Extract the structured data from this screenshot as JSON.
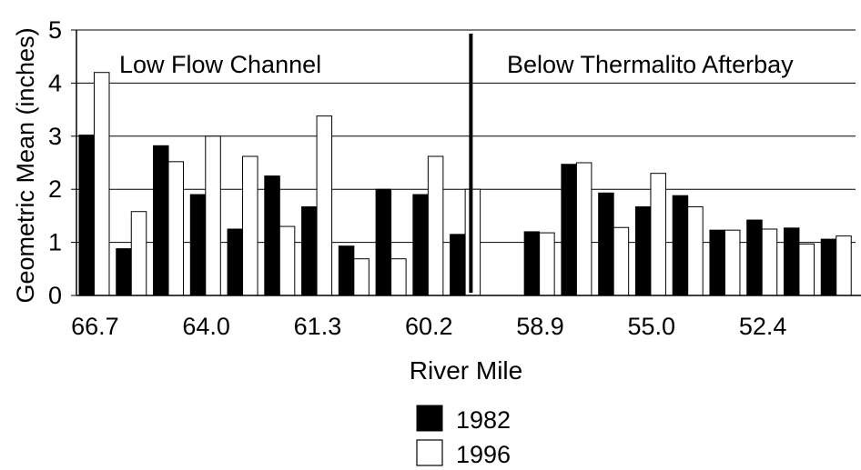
{
  "chart_data": {
    "type": "bar",
    "title": "",
    "xlabel": "River Mile",
    "ylabel": "Geometric Mean (inches)",
    "ylim": [
      0,
      5
    ],
    "yticks": [
      "0",
      "1",
      "2",
      "3",
      "4",
      "5"
    ],
    "x_tick_labels": [
      "66.7",
      "64.0",
      "61.3",
      "60.2",
      "58.9",
      "55.0",
      "52.4"
    ],
    "grid": true,
    "legend_position": "bottom-center",
    "divider_position_group": 11,
    "section_labels": [
      "Low Flow Channel",
      "Below Thermalito Afterbay"
    ],
    "series": [
      {
        "name": "1982",
        "color": "#000000",
        "values": [
          3.02,
          0.88,
          2.82,
          1.9,
          1.25,
          2.25,
          1.67,
          0.93,
          2.0,
          1.9,
          1.15,
          null,
          1.2,
          2.47,
          1.93,
          1.67,
          1.88,
          1.23,
          1.42,
          1.27,
          1.06
        ]
      },
      {
        "name": "1996",
        "color": "#ffffff",
        "values": [
          4.2,
          1.58,
          2.52,
          3.0,
          2.62,
          1.3,
          3.38,
          0.69,
          0.69,
          2.62,
          2.0,
          null,
          1.18,
          2.5,
          1.28,
          2.3,
          1.67,
          1.23,
          1.25,
          0.97,
          1.12
        ]
      }
    ]
  }
}
